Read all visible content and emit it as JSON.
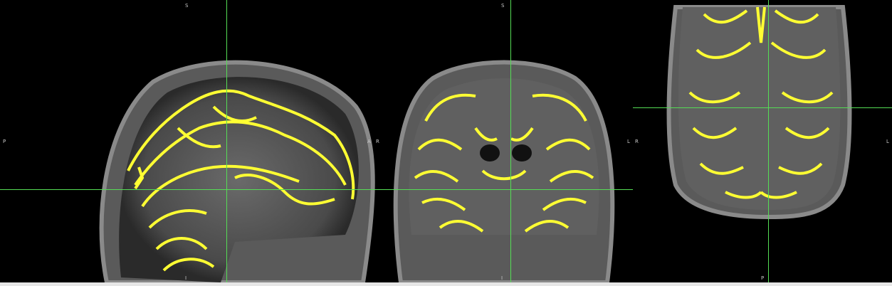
{
  "viewer": {
    "overlay_color": "#ffff33",
    "crosshair_color": "#55dd55"
  },
  "views": {
    "sagittal": {
      "top": "S",
      "left": "P",
      "right": "A",
      "bottom": "I"
    },
    "coronal": {
      "top": "S",
      "left": "R",
      "right": "L",
      "bottom": "I"
    },
    "axial": {
      "left": "R",
      "right": "L",
      "bottom": "P"
    }
  }
}
